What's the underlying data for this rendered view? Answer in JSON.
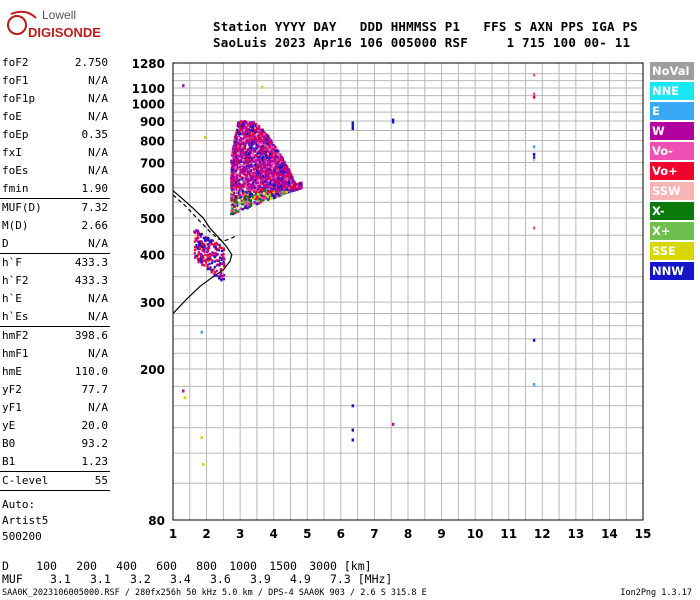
{
  "logo": {
    "line1": "Lowell",
    "line2": "DIGISONDE",
    "color": "#c01b1b"
  },
  "header": {
    "line1": "Station YYYY DAY   DDD HHMMSS P1   FFS S AXN PPS IGA PS",
    "line2": "SaoLuis 2023 Apr16 106 005000 RSF     1 715 100 00- 11"
  },
  "params": {
    "group1": [
      {
        "label": "foF2",
        "value": "2.750"
      },
      {
        "label": "foF1",
        "value": "N/A"
      },
      {
        "label": "foF1p",
        "value": "N/A"
      },
      {
        "label": "foE",
        "value": "N/A"
      },
      {
        "label": "foEp",
        "value": "0.35"
      },
      {
        "label": "fxI",
        "value": "N/A"
      },
      {
        "label": "foEs",
        "value": "N/A"
      },
      {
        "label": "fmin",
        "value": "1.90"
      }
    ],
    "group2": [
      {
        "label": "MUF(D)",
        "value": "7.32"
      },
      {
        "label": "M(D)",
        "value": "2.66"
      },
      {
        "label": "D",
        "value": "N/A"
      }
    ],
    "group3": [
      {
        "label": "h`F",
        "value": "433.3"
      },
      {
        "label": "h`F2",
        "value": "433.3"
      },
      {
        "label": "h`E",
        "value": "N/A"
      },
      {
        "label": "h`Es",
        "value": "N/A"
      }
    ],
    "group4": [
      {
        "label": "hmF2",
        "value": "398.6"
      },
      {
        "label": "hmF1",
        "value": "N/A"
      },
      {
        "label": "hmE",
        "value": "110.0"
      },
      {
        "label": "yF2",
        "value": "77.7"
      },
      {
        "label": "yF1",
        "value": "N/A"
      },
      {
        "label": "yE",
        "value": "20.0"
      },
      {
        "label": "B0",
        "value": "93.2"
      },
      {
        "label": "B1",
        "value": "1.23"
      }
    ],
    "group5": [
      {
        "label": "C-level",
        "value": "55"
      }
    ],
    "auto": [
      "Auto:",
      "Artist5",
      "500200"
    ]
  },
  "legend": [
    {
      "label": "NoVal",
      "color": "#9e9e9e"
    },
    {
      "label": "NNE",
      "color": "#19e6f0"
    },
    {
      "label": "E",
      "color": "#3aa9f5"
    },
    {
      "label": "W",
      "color": "#b0009e"
    },
    {
      "label": "Vo-",
      "color": "#f050b4"
    },
    {
      "label": "Vo+",
      "color": "#f0002d"
    },
    {
      "label": "SSW",
      "color": "#f8b4b4"
    },
    {
      "label": "X-",
      "color": "#0a7a0a"
    },
    {
      "label": "X+",
      "color": "#6fbf4f"
    },
    {
      "label": "SSE",
      "color": "#d7d700"
    },
    {
      "label": "NNW",
      "color": "#1414c8"
    }
  ],
  "chart_data": {
    "type": "scatter",
    "title": "",
    "xlabel": "",
    "ylabel": "",
    "xlim": [
      1,
      15
    ],
    "ylim_scale": "log",
    "ylim": [
      80,
      1280
    ],
    "x_ticks": [
      "1",
      "2",
      "3",
      "4",
      "5",
      "6",
      "7",
      "8",
      "9",
      "10",
      "11",
      "12",
      "13",
      "14",
      "15"
    ],
    "y_ticks": [
      {
        "value": 80,
        "label": "80"
      },
      {
        "value": 200,
        "label": "200"
      },
      {
        "value": 300,
        "label": "300"
      },
      {
        "value": 400,
        "label": "400"
      },
      {
        "value": 500,
        "label": "500"
      },
      {
        "value": 600,
        "label": "600"
      },
      {
        "value": 700,
        "label": "700"
      },
      {
        "value": 800,
        "label": "800"
      },
      {
        "value": 900,
        "label": "900"
      },
      {
        "value": 1000,
        "label": "1000"
      },
      {
        "value": 1100,
        "label": "1100"
      },
      {
        "value": 1280,
        "label": "1280"
      }
    ],
    "y_gridlines": [
      80,
      100,
      120,
      140,
      160,
      180,
      200,
      220,
      240,
      260,
      280,
      300,
      350,
      400,
      450,
      500,
      550,
      600,
      650,
      700,
      750,
      800,
      850,
      900,
      950,
      1000,
      1050,
      1100,
      1150,
      1200,
      1280
    ],
    "grid": true,
    "clusters": [
      {
        "name": "F-trace main",
        "x": [
          2.7,
          4.8
        ],
        "y": [
          500,
          950
        ],
        "colors": [
          "#b0009e",
          "#f0002d",
          "#f050b4",
          "#1414c8",
          "#0a7a0a",
          "#6fbf4f",
          "#d7d700"
        ],
        "density": 2600
      },
      {
        "name": "F-trace low",
        "x": [
          1.6,
          2.5
        ],
        "y": [
          370,
          480
        ],
        "colors": [
          "#1414c8",
          "#b0009e",
          "#f0002d"
        ],
        "density": 220
      }
    ],
    "points": [
      {
        "x": 6.35,
        "y": 860,
        "c": "#1414c8"
      },
      {
        "x": 6.35,
        "y": 870,
        "c": "#1414c8"
      },
      {
        "x": 6.35,
        "y": 880,
        "c": "#1414c8"
      },
      {
        "x": 6.35,
        "y": 890,
        "c": "#1414c8"
      },
      {
        "x": 7.55,
        "y": 895,
        "c": "#1414c8"
      },
      {
        "x": 7.55,
        "y": 905,
        "c": "#1414c8"
      },
      {
        "x": 6.35,
        "y": 160,
        "c": "#1414c8"
      },
      {
        "x": 6.35,
        "y": 138,
        "c": "#1414c8"
      },
      {
        "x": 6.35,
        "y": 130,
        "c": "#1414c8"
      },
      {
        "x": 7.55,
        "y": 143,
        "c": "#b0009e"
      },
      {
        "x": 11.75,
        "y": 1190,
        "c": "#f050b4"
      },
      {
        "x": 11.75,
        "y": 1060,
        "c": "#f050b4"
      },
      {
        "x": 11.75,
        "y": 1040,
        "c": "#f0002d"
      },
      {
        "x": 11.75,
        "y": 770,
        "c": "#3aa9f5"
      },
      {
        "x": 11.75,
        "y": 735,
        "c": "#1414c8"
      },
      {
        "x": 11.75,
        "y": 720,
        "c": "#1414c8"
      },
      {
        "x": 11.75,
        "y": 710,
        "c": "#f8b4b4"
      },
      {
        "x": 11.75,
        "y": 470,
        "c": "#f050b4"
      },
      {
        "x": 11.75,
        "y": 238,
        "c": "#1414c8"
      },
      {
        "x": 11.75,
        "y": 182,
        "c": "#3aa9f5"
      },
      {
        "x": 1.3,
        "y": 1115,
        "c": "#b0009e"
      },
      {
        "x": 3.65,
        "y": 1105,
        "c": "#d7d700"
      },
      {
        "x": 1.95,
        "y": 815,
        "c": "#d7d700"
      },
      {
        "x": 1.85,
        "y": 250,
        "c": "#3aa9f5"
      },
      {
        "x": 1.35,
        "y": 168,
        "c": "#d7d700"
      },
      {
        "x": 1.85,
        "y": 132,
        "c": "#d7d700"
      },
      {
        "x": 1.9,
        "y": 112,
        "c": "#d7d700"
      },
      {
        "x": 1.3,
        "y": 175,
        "c": "#b0009e"
      }
    ],
    "profile_curve": [
      [
        1.0,
        280
      ],
      [
        1.4,
        305
      ],
      [
        1.8,
        330
      ],
      [
        2.2,
        350
      ],
      [
        2.5,
        365
      ],
      [
        2.7,
        385
      ],
      [
        2.75,
        400
      ],
      [
        2.6,
        420
      ],
      [
        2.4,
        440
      ],
      [
        2.1,
        470
      ],
      [
        1.9,
        500
      ],
      [
        1.6,
        530
      ],
      [
        1.3,
        560
      ],
      [
        1.0,
        590
      ]
    ],
    "muf_curve": [
      [
        1.0,
        575
      ],
      [
        1.4,
        535
      ],
      [
        1.8,
        490
      ],
      [
        2.1,
        460
      ],
      [
        2.35,
        440
      ],
      [
        2.5,
        435
      ],
      [
        2.7,
        440
      ],
      [
        2.9,
        450
      ]
    ]
  },
  "footer": {
    "distances_label": "D",
    "distances": [
      "100",
      "200",
      "400",
      "600",
      "800",
      "1000",
      "1500",
      "3000"
    ],
    "distances_unit": "[km]",
    "muf_label": "MUF",
    "mufs": [
      "3.1",
      "3.1",
      "3.2",
      "3.4",
      "3.6",
      "3.9",
      "4.9",
      "7.3"
    ],
    "muf_unit": "[MHz]",
    "file_line": "SAA0K_2023106005000.RSF / 280fx256h 50 kHz 5.0 km / DPS-4 SAA0K 903 / 2.6 S 315.8 E",
    "version": "Ion2Png 1.3.17"
  }
}
